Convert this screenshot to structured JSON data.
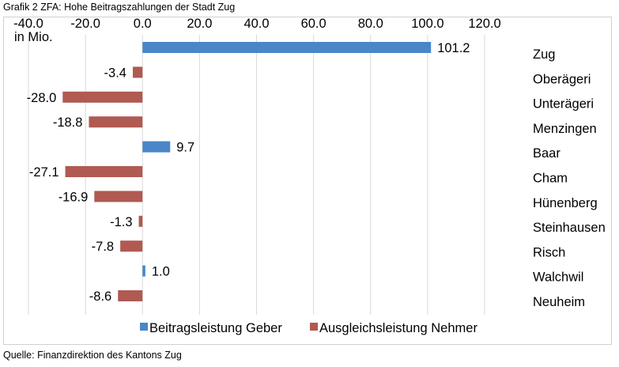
{
  "title": "Grafik 2 ZFA: Hohe Beitragszahlungen der Stadt Zug",
  "source": "Quelle: Finanzdirektion des Kantons Zug",
  "unit_label": "in Mio.",
  "colors": {
    "geber": "#4a86c8",
    "nehmer": "#b05a52",
    "grid": "#d9d9d9"
  },
  "chart_data": {
    "type": "bar",
    "orientation": "horizontal",
    "x_ticks": [
      "-40.0",
      "-20.0",
      "0.0",
      "20.0",
      "40.0",
      "60.0",
      "80.0",
      "100.0",
      "120.0"
    ],
    "xlim": [
      -40,
      120
    ],
    "categories": [
      "Zug",
      "Oberägeri",
      "Unterägeri",
      "Menzingen",
      "Baar",
      "Cham",
      "Hünenberg",
      "Steinhausen",
      "Risch",
      "Walchwil",
      "Neuheim"
    ],
    "series": [
      {
        "name": "Beitragsleistung Geber",
        "values": [
          101.2,
          null,
          null,
          null,
          9.7,
          null,
          null,
          null,
          null,
          1.0,
          null
        ],
        "labels": [
          "101.2",
          "",
          "",
          "",
          "9.7",
          "",
          "",
          "",
          "",
          "1.0",
          ""
        ]
      },
      {
        "name": "Ausgleichsleistung Nehmer",
        "values": [
          null,
          -3.4,
          -28.0,
          -18.8,
          null,
          -27.1,
          -16.9,
          -1.3,
          -7.8,
          null,
          -8.6
        ],
        "labels": [
          "",
          "-3.4",
          "-28.0",
          "-18.8",
          "",
          "-27.1",
          "-16.9",
          "-1.3",
          "-7.8",
          "",
          "-8.6"
        ]
      }
    ],
    "legend_position": "bottom",
    "grid": true
  }
}
